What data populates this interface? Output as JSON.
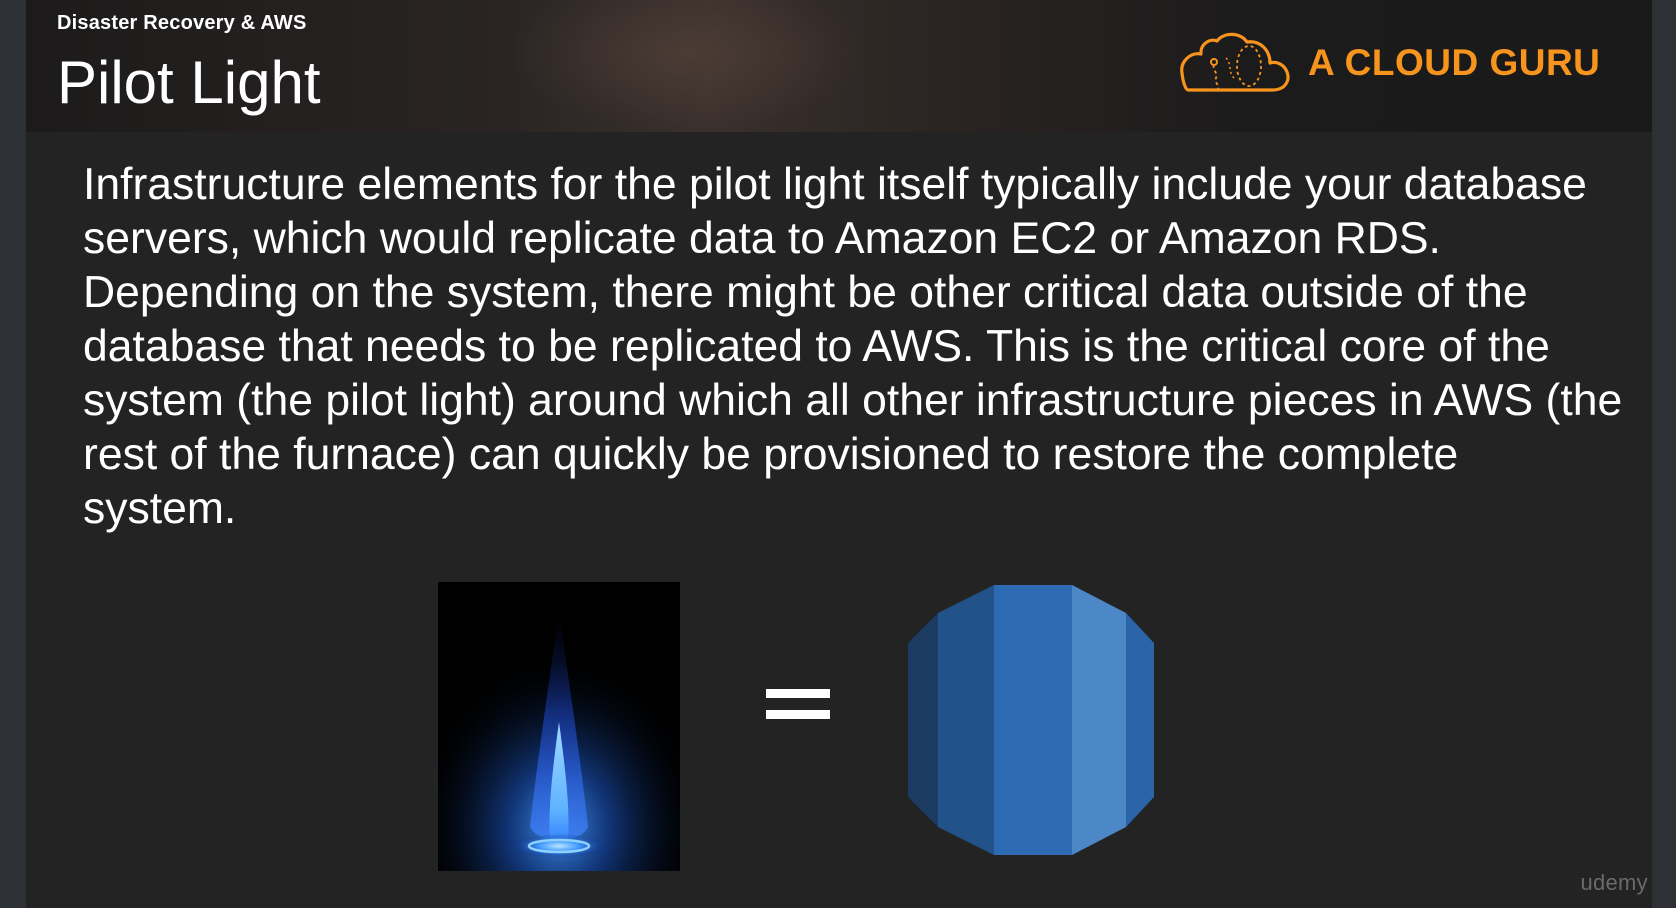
{
  "header": {
    "subtitle": "Disaster Recovery & AWS",
    "title": "Pilot Light"
  },
  "logo": {
    "icon": "cloud-icon",
    "text": "A CLOUD GURU",
    "color": "#f7941d"
  },
  "body": {
    "paragraph": "Infrastructure elements for the pilot light itself typically include your database servers, which would replicate data to Amazon EC2 or Amazon RDS. Depending on the system, there might be other critical data outside of the database that needs to be replicated to AWS. This is the critical core of the system (the pilot light) around which all other infrastructure pieces in AWS (the rest of the furnace) can quickly be provisioned to restore the complete system."
  },
  "illustration": {
    "left_image": "blue-flame-image",
    "operator_icon": "equals-icon",
    "right_image": "aws-rds-database-icon",
    "rds_colors": [
      "#1b3b63",
      "#21538a",
      "#2e6ab2",
      "#4c88c6",
      "#2b64a8"
    ]
  },
  "watermark": {
    "text": "udemy"
  }
}
